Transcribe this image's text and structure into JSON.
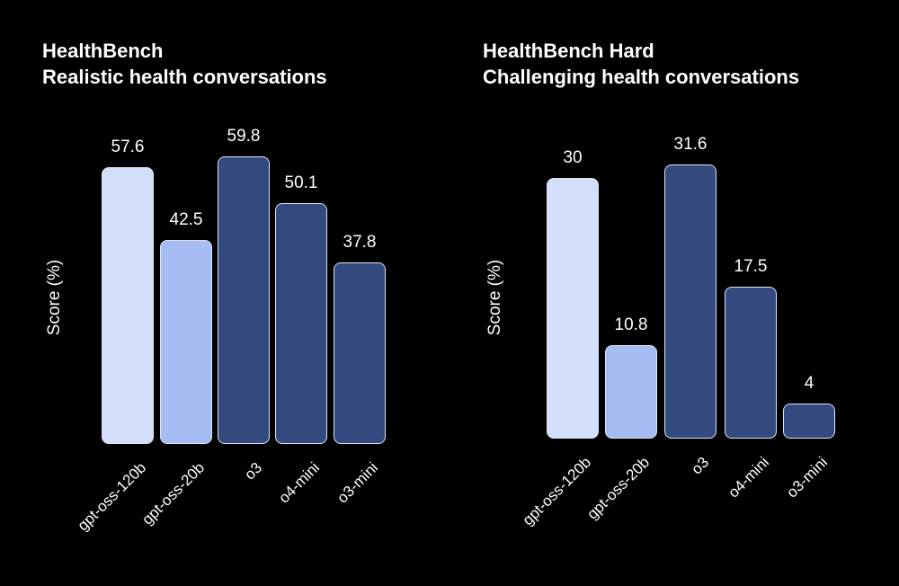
{
  "page": {
    "background_color": "#000000",
    "text_color": "#ffffff",
    "bar_border_color": "#dde6f4"
  },
  "chart_data": [
    {
      "type": "bar",
      "title_line1": "HealthBench",
      "title_line2": "Realistic health conversations",
      "title": "HealthBench Realistic health conversations",
      "ylabel": "Score (%)",
      "xlabel": "",
      "categories": [
        "gpt-oss-120b",
        "gpt-oss-20b",
        "o3",
        "o4-mini",
        "o3-mini"
      ],
      "values": [
        57.6,
        42.5,
        59.8,
        50.1,
        37.8
      ],
      "value_labels": [
        "57.6",
        "42.5",
        "59.8",
        "50.1",
        "37.8"
      ],
      "bar_colors": [
        "#d3defa",
        "#a6bdf3",
        "#34497e",
        "#34497e",
        "#34497e"
      ],
      "ylim": [
        0,
        64
      ],
      "grid": false,
      "legend_position": "none",
      "xtick_rotation_deg": 45,
      "data_labels": true
    },
    {
      "type": "bar",
      "title_line1": "HealthBench Hard",
      "title_line2": "Challenging health conversations",
      "title": "HealthBench Hard Challenging health conversations",
      "ylabel": "Score (%)",
      "xlabel": "",
      "categories": [
        "gpt-oss-120b",
        "gpt-oss-20b",
        "o3",
        "o4-mini",
        "o3-mini"
      ],
      "values": [
        30,
        10.8,
        31.6,
        17.5,
        4
      ],
      "value_labels": [
        "30",
        "10.8",
        "31.6",
        "17.5",
        "4"
      ],
      "bar_colors": [
        "#d3defa",
        "#a6bdf3",
        "#34497e",
        "#34497e",
        "#34497e"
      ],
      "ylim": [
        0,
        34
      ],
      "grid": false,
      "legend_position": "none",
      "xtick_rotation_deg": 45,
      "data_labels": true
    }
  ]
}
